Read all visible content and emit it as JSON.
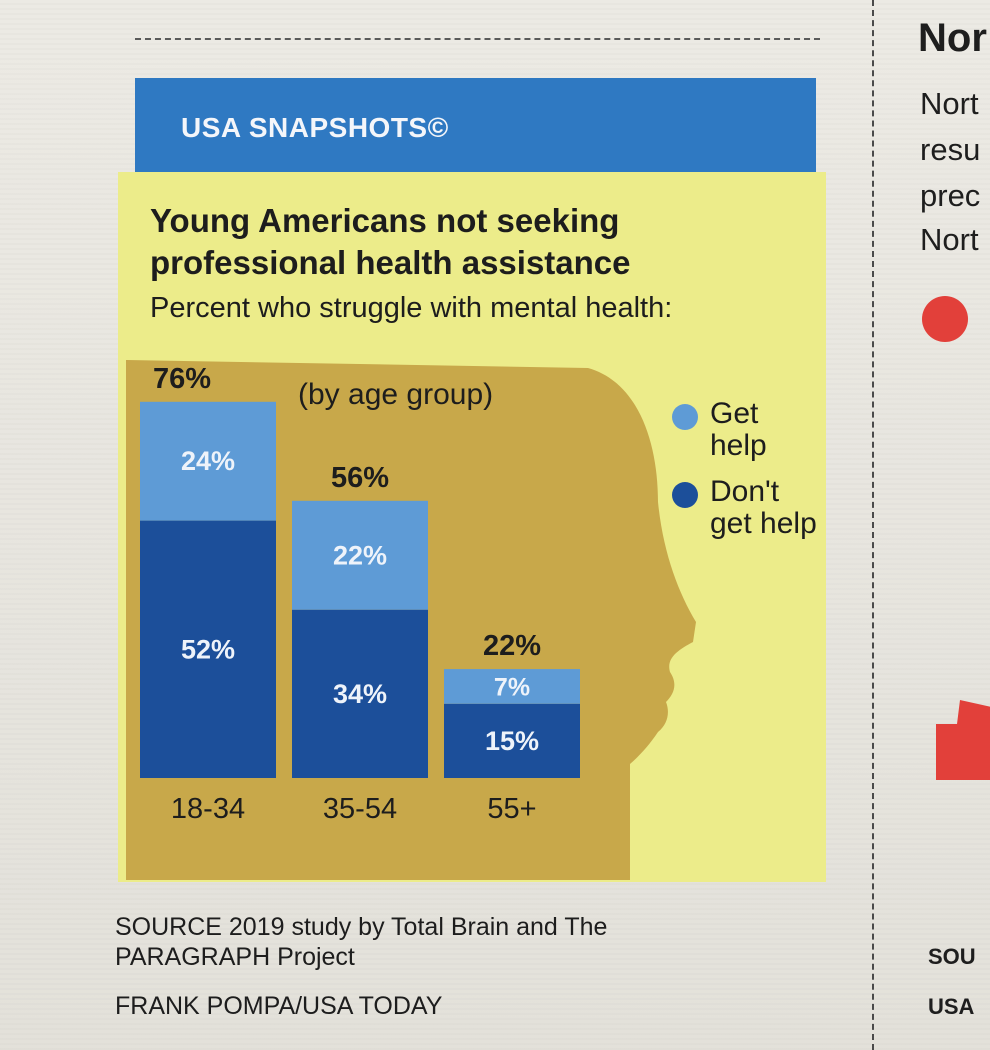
{
  "header": {
    "title": "USA SNAPSHOTS©"
  },
  "chart_data": {
    "type": "bar",
    "stacked": true,
    "title": "Young Americans not seeking professional health assistance",
    "subtitle": "Percent who struggle with mental health:",
    "annotation": "(by age group)",
    "categories": [
      "18-34",
      "35-54",
      "55+"
    ],
    "totals": [
      76,
      56,
      22
    ],
    "total_labels": [
      "76%",
      "56%",
      "22%"
    ],
    "series": [
      {
        "name": "Don't get help",
        "values": [
          52,
          34,
          15
        ],
        "labels": [
          "52%",
          "34%",
          "15%"
        ],
        "color": "#1c4f9a"
      },
      {
        "name": "Get help",
        "values": [
          24,
          22,
          7
        ],
        "labels": [
          "24%",
          "22%",
          "7%"
        ],
        "color": "#5e9bd6"
      }
    ],
    "ylim": [
      0,
      80
    ],
    "grid": false
  },
  "legend": [
    {
      "label": "Get help",
      "color": "#5e9bd6"
    },
    {
      "label": "Don't get help",
      "color": "#1c4f9a"
    }
  ],
  "footer": {
    "source": "SOURCE 2019 study by Total Brain and The PARAGRAPH Project",
    "credit": "FRANK POMPA/USA TODAY"
  },
  "neighbor_column": {
    "headline": "Nor",
    "lines": [
      "Nort",
      "resu",
      "prec",
      "Nort"
    ],
    "footer_lines": [
      "SOU",
      "USA"
    ]
  },
  "colors": {
    "header_blue": "#2f79c2",
    "panel_yellow": "#ecec8a",
    "silhouette": "#c8a84a"
  }
}
